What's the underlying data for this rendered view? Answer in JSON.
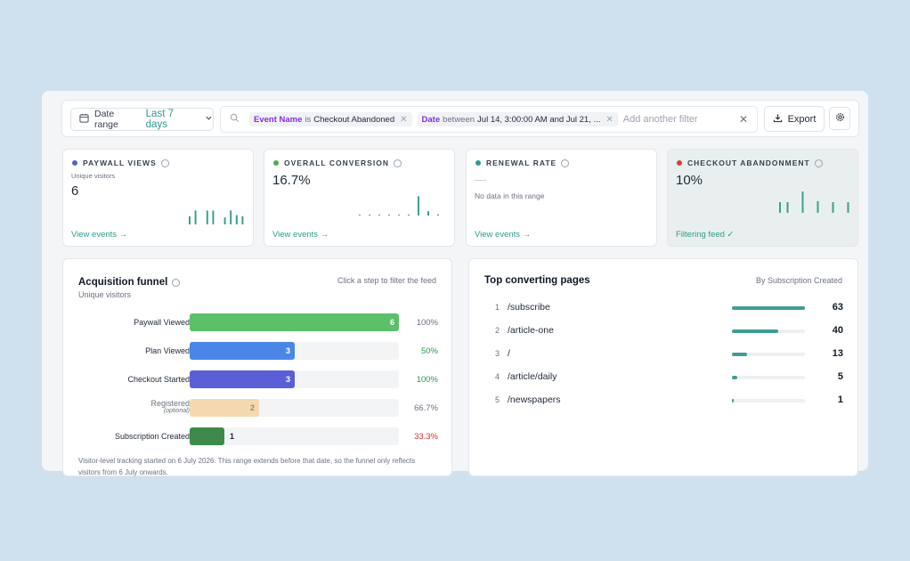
{
  "filterbar": {
    "date_label": "Date range",
    "date_value": "Last 7 days",
    "chips": [
      {
        "field": "Event Name",
        "op": "is",
        "value": "Checkout Abandoned"
      },
      {
        "field": "Date",
        "op": "between",
        "value": "Jul 14, 3:00:00 AM and Jul 21, ..."
      }
    ],
    "add_filter_placeholder": "Add another filter",
    "export_label": "Export"
  },
  "cards": [
    {
      "title": "PAYWALL VIEWS",
      "sub": "Unique visitors",
      "value": "6",
      "foot": "View events →",
      "dot_color": "#5b5fc7",
      "spark": [
        0.35,
        0.6,
        0,
        0.6,
        0.6,
        0,
        0.3,
        0.6,
        0.4,
        0.35
      ]
    },
    {
      "title": "OVERALL CONVERSION",
      "value": "16.7%",
      "foot": "View events →",
      "dot_color": "#4caf50",
      "spark": [
        0.03,
        0.03,
        0.03,
        0.03,
        0.03,
        0.03,
        0.9,
        0.2,
        0.05
      ]
    },
    {
      "title": "RENEWAL RATE",
      "value": "—",
      "nodata": "No data in this range",
      "foot": "View events →",
      "dot_color": "#2f9a8f"
    },
    {
      "title": "CHECKOUT ABANDONMENT",
      "value": "10%",
      "foot": "Filtering feed ✓",
      "dot_color": "#e53935",
      "spark": [
        0.5,
        0.5,
        0,
        1,
        0,
        0.55,
        0,
        0.5,
        0,
        0.5
      ]
    }
  ],
  "funnel": {
    "title": "Acquisition funnel",
    "subtitle": "Unique visitors",
    "hint": "Click a step to filter the feed",
    "steps": [
      {
        "label": "Paywall Viewed",
        "count": "6",
        "share": 1.0,
        "pct": "100%",
        "color": "#5cc06b",
        "pct_color": "#6b7280"
      },
      {
        "label": "Plan Viewed",
        "count": "3",
        "share": 0.5,
        "pct": "50%",
        "color": "#4a86e8",
        "pct_color": "#2e9a52"
      },
      {
        "label": "Checkout Started",
        "count": "3",
        "share": 0.5,
        "pct": "100%",
        "color": "#5b5fd6",
        "pct_color": "#2e9a52"
      },
      {
        "label": "Registered",
        "optional": "(optional)",
        "count": "2",
        "share": 0.333,
        "pct": "66.7%",
        "color": "#f4d9b0",
        "pct_color": "#6b7280"
      },
      {
        "label": "Subscription Created",
        "count": "1",
        "share": 0.167,
        "pct": "33.3%",
        "color": "#3e8a4c",
        "pct_color": "#d0323b"
      }
    ],
    "note": "Visitor-level tracking started on 6 July 2026. This range extends before that date, so the funnel only reflects visitors from 6 July onwards."
  },
  "pages": {
    "title": "Top converting pages",
    "hint": "By Subscription Created",
    "rows": [
      {
        "rank": "1",
        "path": "/subscribe",
        "count": "63",
        "share": 1.0
      },
      {
        "rank": "2",
        "path": "/article-one",
        "count": "40",
        "share": 0.635
      },
      {
        "rank": "3",
        "path": "/",
        "count": "13",
        "share": 0.206
      },
      {
        "rank": "4",
        "path": "/article/daily",
        "count": "5",
        "share": 0.079
      },
      {
        "rank": "5",
        "path": "/newspapers",
        "count": "1",
        "share": 0.016
      }
    ]
  }
}
